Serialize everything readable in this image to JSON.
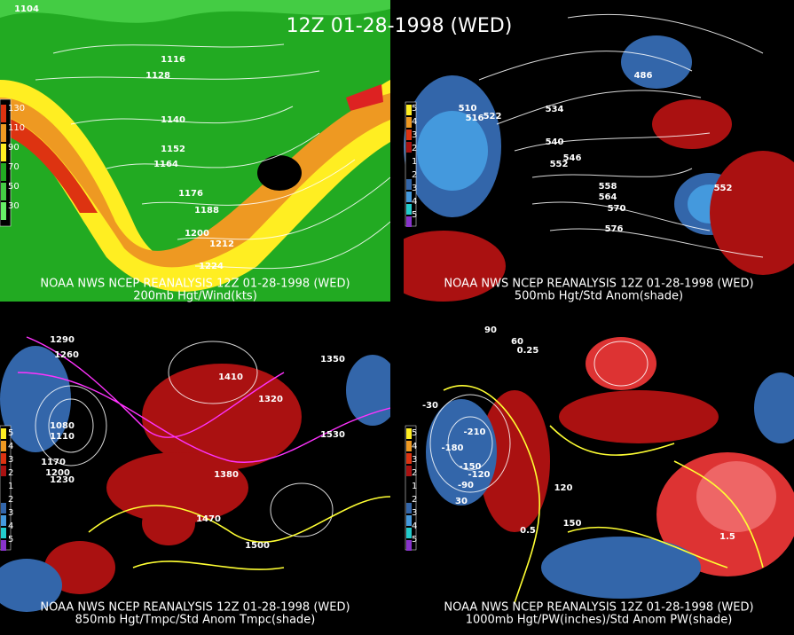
{
  "title": "12Z 01-28-1998 (WED)",
  "panels": [
    {
      "caption": [
        "NOAA NWS NCEP REANALYSIS 12Z 01-28-1998 (WED)",
        "200mb Hgt/Wind(kts)"
      ],
      "legend": [
        "130",
        "110",
        "90",
        "70",
        "50",
        "30"
      ],
      "contour_labels": [
        "1104",
        "1116",
        "1128",
        "1140",
        "1152",
        "1164",
        "1176",
        "1188",
        "1200",
        "1212",
        "1224"
      ]
    },
    {
      "caption": [
        "NOAA NWS NCEP REANALYSIS 12Z 01-28-1998 (WED)",
        "500mb Hgt/Std Anom(shade)"
      ],
      "legend": [
        "5",
        "4",
        "3",
        "2",
        "1",
        "2",
        "3",
        "4",
        "5"
      ],
      "contour_labels": [
        "510",
        "516",
        "522",
        "486",
        "534",
        "540",
        "546",
        "552",
        "558",
        "564",
        "570",
        "576",
        "552"
      ]
    },
    {
      "caption": [
        "NOAA NWS NCEP REANALYSIS 12Z 01-28-1998 (WED)",
        "850mb Hgt/Tmpc/Std Anom Tmpc(shade)"
      ],
      "legend": [
        "5",
        "4",
        "3",
        "2",
        "1",
        "2",
        "3",
        "4",
        "5"
      ],
      "contour_labels": [
        "1290",
        "1260",
        "1080",
        "1110",
        "1170",
        "1200",
        "1230",
        "1350",
        "1410",
        "1320",
        "1380",
        "1470",
        "1500",
        "1530"
      ]
    },
    {
      "caption": [
        "NOAA NWS NCEP REANALYSIS 12Z 01-28-1998 (WED)",
        "1000mb Hgt/PW(inches)/Std Anom PW(shade)"
      ],
      "legend": [
        "5",
        "4",
        "3",
        "2",
        "1",
        "2",
        "3",
        "4",
        "5"
      ],
      "contour_labels": [
        "90",
        "60",
        "-30",
        "-210",
        "-180",
        "-150",
        "-120",
        "-90",
        "30",
        "120",
        "150",
        "0.25",
        "0.5",
        "1.5"
      ]
    }
  ]
}
